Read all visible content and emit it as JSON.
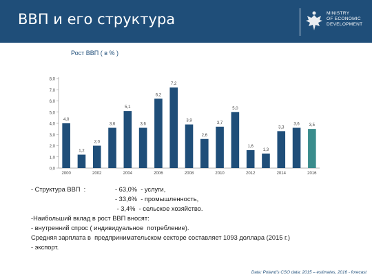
{
  "header": {
    "title": "ВВП и его структура",
    "ministry_lines": [
      "MINISTRY",
      "OF ECONOMIC",
      "DEVELOPMENT"
    ]
  },
  "chart_data": {
    "type": "bar",
    "title": "Рост ВВП  ( в % )",
    "categories": [
      "2000",
      "2001",
      "2002",
      "2003",
      "2004",
      "2005",
      "2006",
      "2007",
      "2008",
      "2009",
      "2010",
      "2011",
      "2012",
      "2013",
      "2014",
      "2015",
      "2016"
    ],
    "values": [
      4.0,
      1.2,
      2.0,
      3.6,
      5.1,
      3.6,
      6.2,
      7.2,
      3.9,
      2.6,
      3.7,
      5.0,
      1.6,
      1.3,
      3.3,
      3.6,
      3.5
    ],
    "data_labels": [
      "4,0",
      "1,2",
      "2,0",
      "3,6",
      "5,1",
      "3,6",
      "6,2",
      "7,2",
      "3,9",
      "2,6",
      "3,7",
      "5,0",
      "1,6",
      "1,3",
      "3,3",
      "3,6",
      "3,5"
    ],
    "x_tick_labels": [
      "2000",
      "2002",
      "2004",
      "2006",
      "2008",
      "2010",
      "2012",
      "2014",
      "2016"
    ],
    "y_tick_labels": [
      "0,0",
      "1,0",
      "2,0",
      "3,0",
      "4,0",
      "5,0",
      "6,0",
      "7,0",
      "8,0"
    ],
    "ylim": [
      0,
      8
    ],
    "xlabel": "",
    "ylabel": "",
    "colors": {
      "bar": "#1f4e79",
      "forecast": "#3a8c8c"
    },
    "forecast_index": 16
  },
  "notes": {
    "structure_label": "- Структура ВВП  :",
    "structure_items": [
      "- 63,0%  - услуги,",
      "- 33,6%  - промышленность,",
      " - 3,4%  - сельское хозяйство."
    ],
    "growth_contrib": "-Наибольший вклад в рост ВВП вносят:",
    "domestic_demand": "- внутренний спрос ( индивидуальное  потребление).",
    "salary": "Средняя зарплата в  предпринимательском секторе составляет 1093 доллара (2015 г.)",
    "export": "- экспорт."
  },
  "source": "Data: Poland's CSO data; 2015 – estimates, 2016 - forecast"
}
